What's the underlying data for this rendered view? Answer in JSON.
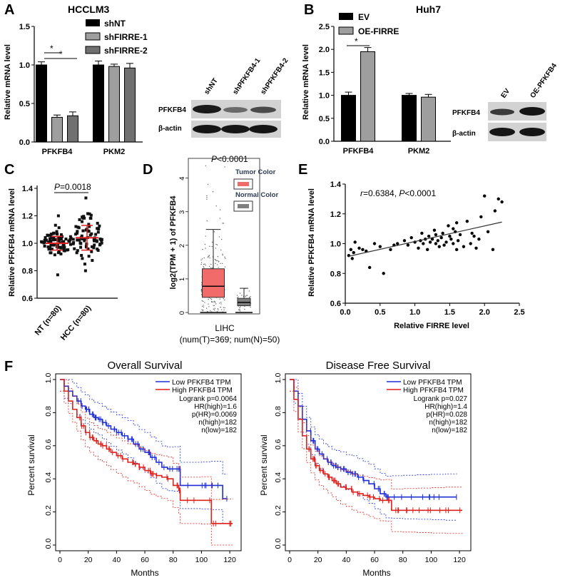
{
  "colors": {
    "black": "#000000",
    "gray_mid": "#9e9e9e",
    "gray_dark": "#707070",
    "tumor": "#f26b6b",
    "normal": "#7f7f7f",
    "km_low": "#1f2fd6",
    "km_high": "#e0201a",
    "fit_line": "#333333",
    "median": "#e02020"
  },
  "panels": {
    "a": "A",
    "b": "B",
    "c": "C",
    "d": "D",
    "e": "E",
    "f": "F"
  },
  "chart_data": [
    {
      "id": "A",
      "type": "bar",
      "title": "HCCLM3",
      "ylabel": "Relative mRNA level",
      "ylim": [
        0,
        1.5
      ],
      "yticks": [
        "0.0",
        "0.5",
        "1.0",
        "1.5"
      ],
      "categories": [
        "PFKFB4",
        "PKM2"
      ],
      "series": [
        {
          "name": "shNT",
          "values": [
            1.0,
            1.0
          ],
          "errors": [
            0.04,
            0.05
          ]
        },
        {
          "name": "shFIRRE-1",
          "values": [
            0.32,
            0.98
          ],
          "errors": [
            0.03,
            0.03
          ]
        },
        {
          "name": "shFIRRE-2",
          "values": [
            0.34,
            0.96
          ],
          "errors": [
            0.05,
            0.06
          ]
        }
      ],
      "significance": [
        {
          "label": "*",
          "pair": "shNT vs shFIRRE-1"
        },
        {
          "label": "*",
          "pair": "shNT vs shFIRRE-2"
        }
      ],
      "western_blot": {
        "lanes": [
          "shNT",
          "shPFKFB4-1",
          "shPFKFB4-2"
        ],
        "rows": [
          "PFKFB4",
          "β-actin"
        ]
      }
    },
    {
      "id": "B",
      "type": "bar",
      "title": "Huh7",
      "ylabel": "Relative mRNA level",
      "ylim": [
        0,
        2.5
      ],
      "yticks": [
        "0.0",
        "0.5",
        "1.0",
        "1.5",
        "2.0",
        "2.5"
      ],
      "categories": [
        "PFKFB4",
        "PKM2"
      ],
      "series": [
        {
          "name": "EV",
          "values": [
            1.0,
            1.0
          ],
          "errors": [
            0.07,
            0.04
          ]
        },
        {
          "name": "OE-FIRRE",
          "values": [
            1.95,
            0.96
          ],
          "errors": [
            0.09,
            0.06
          ]
        }
      ],
      "significance": [
        {
          "label": "*",
          "pair": "EV vs OE-FIRRE"
        }
      ],
      "western_blot": {
        "lanes": [
          "EV",
          "OE-PFKFB4"
        ],
        "rows": [
          "PFKFB4",
          "β-actin"
        ]
      }
    },
    {
      "id": "C",
      "type": "scatter",
      "ylabel": "Relative PFKFB4 mRNA level",
      "ylim": [
        0.6,
        1.4
      ],
      "yticks": [
        "0.6",
        "0.8",
        "1.0",
        "1.2",
        "1.4"
      ],
      "categories": [
        "NT (n=80)",
        "HCC (n=80)"
      ],
      "groups": [
        {
          "name": "NT (n=80)",
          "n": 80,
          "mean": 1.0,
          "sd": 0.05,
          "min": 0.77,
          "max": 1.2
        },
        {
          "name": "HCC (n=80)",
          "n": 80,
          "mean": 1.04,
          "sd": 0.09,
          "min": 0.8,
          "max": 1.33
        }
      ],
      "p_label": "P",
      "p_value": "=0.0018"
    },
    {
      "id": "D",
      "type": "box",
      "ylabel": "log2(TPM + 1) of PFKFB4",
      "yticks": [
        "0",
        "1",
        "2",
        "3",
        "4"
      ],
      "ylim": [
        0,
        4.5
      ],
      "p_label": "P",
      "p_value": "<0.0001",
      "legend": [
        "Tumor Color",
        "Normal Color"
      ],
      "xlabel": "LIHC",
      "xlabel2": "(num(T)=369; num(N)=50)",
      "boxes": [
        {
          "name": "Tumor",
          "q1": 0.45,
          "median": 0.78,
          "q3": 1.3,
          "whisker_low": 0.0,
          "whisker_high": 2.47,
          "max_outlier": 4.45
        },
        {
          "name": "Normal",
          "q1": 0.2,
          "median": 0.3,
          "q3": 0.42,
          "whisker_low": 0.0,
          "whisker_high": 0.72,
          "max_outlier": 0.9
        }
      ]
    },
    {
      "id": "E",
      "type": "scatter",
      "xlabel": "Relative FIRRE level",
      "ylabel": "Relative PFKFB4 mRNA level",
      "xlim": [
        0.0,
        2.5
      ],
      "ylim": [
        0.6,
        1.4
      ],
      "xticks": [
        "0.0",
        "0.5",
        "1.0",
        "1.5",
        "2.0",
        "2.5"
      ],
      "yticks": [
        "0.6",
        "0.8",
        "1.0",
        "1.2",
        "1.4"
      ],
      "r_label": "r",
      "annotation": "=0.6384, ",
      "p_label": "P",
      "p_value": "<0.0001",
      "fit": {
        "x0": 0.05,
        "y0": 0.915,
        "x1": 2.25,
        "y1": 1.145
      },
      "points": [
        [
          0.05,
          0.92
        ],
        [
          0.08,
          0.96
        ],
        [
          0.1,
          0.9
        ],
        [
          0.12,
          0.94
        ],
        [
          0.14,
          1.01
        ],
        [
          0.2,
          0.97
        ],
        [
          0.25,
          0.96
        ],
        [
          0.3,
          0.95
        ],
        [
          0.35,
          0.84
        ],
        [
          0.42,
          1.0
        ],
        [
          0.5,
          0.98
        ],
        [
          0.55,
          0.8
        ],
        [
          0.65,
          0.96
        ],
        [
          0.7,
          0.99
        ],
        [
          0.75,
          1.0
        ],
        [
          0.85,
          1.02
        ],
        [
          0.9,
          0.99
        ],
        [
          0.95,
          1.04
        ],
        [
          1.0,
          1.01
        ],
        [
          1.05,
          0.97
        ],
        [
          1.08,
          1.02
        ],
        [
          1.1,
          1.07
        ],
        [
          1.12,
          1.0
        ],
        [
          1.15,
          1.03
        ],
        [
          1.18,
          0.96
        ],
        [
          1.2,
          1.05
        ],
        [
          1.22,
          1.01
        ],
        [
          1.25,
          1.03
        ],
        [
          1.28,
          1.09
        ],
        [
          1.3,
          1.06
        ],
        [
          1.3,
          1.0
        ],
        [
          1.33,
          1.02
        ],
        [
          1.35,
          0.98
        ],
        [
          1.38,
          1.04
        ],
        [
          1.4,
          1.07
        ],
        [
          1.42,
          0.99
        ],
        [
          1.45,
          1.01
        ],
        [
          1.48,
          1.12
        ],
        [
          1.5,
          1.05
        ],
        [
          1.52,
          1.03
        ],
        [
          1.55,
          1.1
        ],
        [
          1.55,
          1.0
        ],
        [
          1.58,
          1.08
        ],
        [
          1.6,
          1.14
        ],
        [
          1.6,
          0.96
        ],
        [
          1.62,
          1.02
        ],
        [
          1.65,
          1.06
        ],
        [
          1.7,
          0.98
        ],
        [
          1.75,
          1.15
        ],
        [
          1.8,
          1.0
        ],
        [
          1.82,
          1.07
        ],
        [
          1.85,
          1.05
        ],
        [
          1.88,
          0.97
        ],
        [
          1.92,
          1.03
        ],
        [
          1.95,
          1.18
        ],
        [
          2.0,
          1.32
        ],
        [
          2.05,
          1.08
        ],
        [
          2.12,
          0.96
        ],
        [
          2.15,
          1.22
        ],
        [
          2.2,
          1.3
        ],
        [
          2.25,
          1.28
        ]
      ]
    },
    {
      "id": "F-overall",
      "type": "line",
      "title": "Overall Survival",
      "xlabel": "Months",
      "ylabel": "Percent survival",
      "xlim": [
        0,
        125
      ],
      "ylim": [
        0,
        1.0
      ],
      "xticks": [
        "0",
        "20",
        "40",
        "60",
        "80",
        "100",
        "120"
      ],
      "yticks": [
        "0.0",
        "0.2",
        "0.4",
        "0.6",
        "0.8",
        "1.0"
      ],
      "legend": [
        "Low PFKFB4 TPM",
        "High PFKFB4 TPM"
      ],
      "stats": [
        "Logrank p=0.0064",
        "HR(high)=1.6",
        "p(HR)=0.0069",
        "n(high)=182",
        "n(low)=182"
      ],
      "series": [
        {
          "name": "Low PFKFB4 TPM",
          "x": [
            0,
            3,
            6,
            9,
            12,
            15,
            18,
            21,
            24,
            27,
            30,
            33,
            36,
            40,
            44,
            48,
            52,
            56,
            60,
            64,
            68,
            72,
            76,
            80,
            84,
            85,
            100,
            107,
            115,
            118
          ],
          "y": [
            1.0,
            0.96,
            0.93,
            0.9,
            0.87,
            0.84,
            0.82,
            0.79,
            0.77,
            0.76,
            0.74,
            0.72,
            0.7,
            0.68,
            0.66,
            0.64,
            0.61,
            0.58,
            0.56,
            0.53,
            0.5,
            0.47,
            0.46,
            0.46,
            0.46,
            0.36,
            0.36,
            0.36,
            0.28,
            0.28
          ]
        },
        {
          "name": "High PFKFB4 TPM",
          "x": [
            0,
            3,
            6,
            9,
            12,
            15,
            18,
            21,
            24,
            27,
            30,
            33,
            36,
            40,
            44,
            48,
            52,
            56,
            60,
            64,
            68,
            72,
            76,
            80,
            84,
            85,
            100,
            107,
            115,
            122
          ],
          "y": [
            1.0,
            0.93,
            0.87,
            0.82,
            0.77,
            0.72,
            0.68,
            0.65,
            0.63,
            0.61,
            0.6,
            0.58,
            0.56,
            0.54,
            0.52,
            0.5,
            0.49,
            0.47,
            0.45,
            0.43,
            0.42,
            0.41,
            0.4,
            0.36,
            0.33,
            0.27,
            0.27,
            0.13,
            0.13,
            0.13
          ]
        }
      ]
    },
    {
      "id": "F-disease-free",
      "type": "line",
      "title": "Disease Free Survival",
      "xlabel": "Months",
      "ylabel": "Percent survival",
      "xlim": [
        0,
        125
      ],
      "ylim": [
        0,
        1.0
      ],
      "xticks": [
        "0",
        "20",
        "40",
        "60",
        "80",
        "100",
        "120"
      ],
      "yticks": [
        "0.0",
        "0.2",
        "0.4",
        "0.6",
        "0.8",
        "1.0"
      ],
      "legend": [
        "Low PFKFB4 TPM",
        "High PFKFB4 TPM"
      ],
      "stats": [
        "Logrank p=0.027",
        "HR(high)=1.4",
        "p(HR)=0.028",
        "n(high)=182",
        "n(low)=182"
      ],
      "series": [
        {
          "name": "Low PFKFB4 TPM",
          "x": [
            0,
            3,
            6,
            9,
            12,
            15,
            18,
            21,
            24,
            27,
            30,
            33,
            36,
            40,
            44,
            48,
            52,
            56,
            60,
            64,
            68,
            72,
            80,
            90,
            100,
            110,
            118
          ],
          "y": [
            1.0,
            0.93,
            0.84,
            0.76,
            0.69,
            0.63,
            0.58,
            0.55,
            0.52,
            0.5,
            0.48,
            0.47,
            0.46,
            0.44,
            0.43,
            0.41,
            0.39,
            0.37,
            0.34,
            0.31,
            0.29,
            0.29,
            0.29,
            0.29,
            0.29,
            0.29,
            0.29
          ]
        },
        {
          "name": "High PFKFB4 TPM",
          "x": [
            0,
            3,
            6,
            9,
            12,
            15,
            18,
            21,
            24,
            27,
            30,
            33,
            36,
            40,
            44,
            48,
            52,
            56,
            60,
            64,
            68,
            72,
            80,
            90,
            100,
            110,
            122
          ],
          "y": [
            1.0,
            0.88,
            0.76,
            0.66,
            0.58,
            0.52,
            0.48,
            0.45,
            0.43,
            0.41,
            0.39,
            0.37,
            0.35,
            0.34,
            0.32,
            0.31,
            0.3,
            0.29,
            0.28,
            0.27,
            0.27,
            0.21,
            0.21,
            0.21,
            0.21,
            0.21,
            0.21
          ]
        }
      ]
    }
  ]
}
